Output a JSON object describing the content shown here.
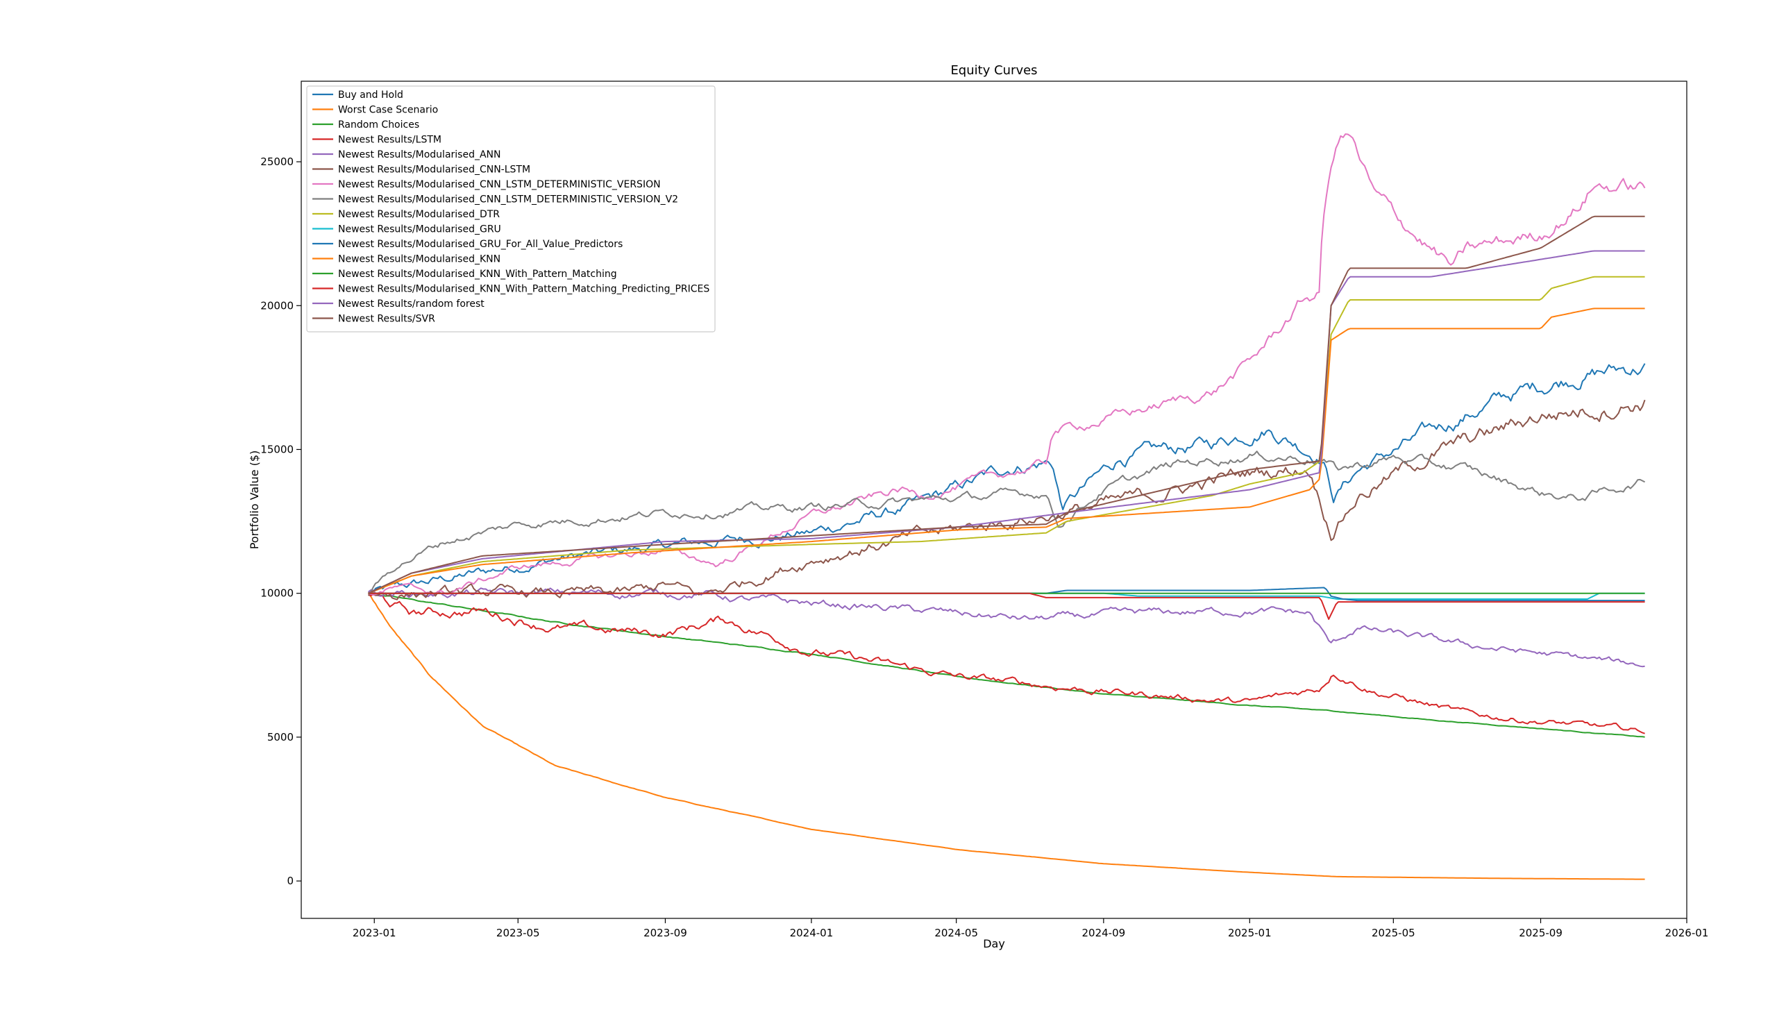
{
  "chart_data": {
    "type": "line",
    "title": "Equity Curves",
    "xlabel": "Day",
    "ylabel": "Portfolio Value ($)",
    "x_start": "2022-12-27",
    "x_end": "2025-11-27",
    "xlim": [
      "2022-11-01",
      "2026-01-01"
    ],
    "ylim": [
      -1300,
      27800
    ],
    "x_ticks": [
      "2023-01",
      "2023-05",
      "2023-09",
      "2024-01",
      "2024-05",
      "2024-09",
      "2025-01",
      "2025-05",
      "2025-09",
      "2026-01"
    ],
    "y_ticks": [
      0,
      5000,
      10000,
      15000,
      20000,
      25000
    ],
    "grid": false,
    "legend_position": "top-left",
    "series": [
      {
        "name": "Buy and Hold",
        "color": "#1f77b4",
        "noise": 0.018,
        "points": [
          [
            "2022-12-27",
            10000
          ],
          [
            "2023-06-01",
            11200
          ],
          [
            "2023-09-15",
            11700
          ],
          [
            "2024-01-01",
            12100
          ],
          [
            "2024-04-01",
            13100
          ],
          [
            "2024-06-15",
            14400
          ],
          [
            "2024-07-20",
            14600
          ],
          [
            "2024-07-28",
            13000
          ],
          [
            "2024-09-15",
            14700
          ],
          [
            "2024-12-01",
            15200
          ],
          [
            "2025-01-15",
            15800
          ],
          [
            "2025-02-20",
            15000
          ],
          [
            "2025-03-03",
            14800
          ],
          [
            "2025-03-12",
            13400
          ],
          [
            "2025-04-01",
            14300
          ],
          [
            "2025-06-01",
            15600
          ],
          [
            "2025-08-01",
            16800
          ],
          [
            "2025-10-01",
            17600
          ],
          [
            "2025-11-27",
            17900
          ]
        ]
      },
      {
        "name": "Worst Case Scenario",
        "color": "#ff7f0e",
        "noise": 0.004,
        "points": [
          [
            "2022-12-27",
            10000
          ],
          [
            "2023-01-15",
            8800
          ],
          [
            "2023-02-15",
            7200
          ],
          [
            "2023-04-01",
            5400
          ],
          [
            "2023-06-01",
            4000
          ],
          [
            "2023-09-01",
            2900
          ],
          [
            "2024-01-01",
            1800
          ],
          [
            "2024-05-01",
            1100
          ],
          [
            "2024-09-01",
            600
          ],
          [
            "2025-01-01",
            300
          ],
          [
            "2025-03-15",
            150
          ],
          [
            "2025-08-01",
            90
          ],
          [
            "2025-11-27",
            60
          ]
        ]
      },
      {
        "name": "Random Choices",
        "color": "#2ca02c",
        "noise": 0.0025,
        "points": [
          [
            "2022-12-27",
            10000
          ],
          [
            "2023-03-01",
            9600
          ],
          [
            "2023-06-01",
            9000
          ],
          [
            "2023-09-01",
            8500
          ],
          [
            "2024-01-01",
            7900
          ],
          [
            "2024-05-01",
            7100
          ],
          [
            "2024-09-01",
            6500
          ],
          [
            "2025-01-01",
            6100
          ],
          [
            "2025-03-15",
            5900
          ],
          [
            "2025-06-01",
            5600
          ],
          [
            "2025-09-01",
            5300
          ],
          [
            "2025-11-27",
            5000
          ]
        ]
      },
      {
        "name": "Newest Results/LSTM",
        "color": "#d62728",
        "noise": 0.02,
        "points": [
          [
            "2022-12-27",
            10000
          ],
          [
            "2023-02-01",
            9300
          ],
          [
            "2023-04-01",
            9400
          ],
          [
            "2023-06-01",
            8800
          ],
          [
            "2023-09-01",
            8600
          ],
          [
            "2023-10-20",
            9100
          ],
          [
            "2024-01-01",
            8000
          ],
          [
            "2024-05-01",
            7100
          ],
          [
            "2024-09-01",
            6600
          ],
          [
            "2025-01-01",
            6200
          ],
          [
            "2025-02-28",
            6700
          ],
          [
            "2025-03-12",
            7300
          ],
          [
            "2025-04-15",
            6600
          ],
          [
            "2025-07-01",
            5800
          ],
          [
            "2025-11-27",
            5200
          ]
        ]
      },
      {
        "name": "Newest Results/Modularised_ANN",
        "color": "#9467bd",
        "noise": 0.015,
        "points": [
          [
            "2022-12-27",
            10000
          ],
          [
            "2023-04-01",
            10000
          ],
          [
            "2023-10-01",
            10000
          ],
          [
            "2023-11-01",
            9800
          ],
          [
            "2024-03-01",
            9500
          ],
          [
            "2024-07-01",
            9100
          ],
          [
            "2024-10-01",
            9300
          ],
          [
            "2025-01-01",
            9400
          ],
          [
            "2025-02-20",
            9300
          ],
          [
            "2025-03-10",
            8200
          ],
          [
            "2025-04-01",
            8800
          ],
          [
            "2025-07-01",
            8200
          ],
          [
            "2025-11-27",
            7500
          ]
        ]
      },
      {
        "name": "Newest Results/Modularised_CNN-LSTM",
        "color": "#8c564b",
        "noise": 0.02,
        "points": [
          [
            "2022-12-27",
            10000
          ],
          [
            "2023-05-01",
            10000
          ],
          [
            "2023-08-01",
            10000
          ],
          [
            "2023-09-01",
            10300
          ],
          [
            "2023-10-01",
            9900
          ],
          [
            "2024-01-01",
            11200
          ],
          [
            "2024-04-01",
            12000
          ],
          [
            "2024-07-15",
            12700
          ],
          [
            "2024-10-01",
            13300
          ],
          [
            "2025-01-01",
            14200
          ],
          [
            "2025-02-20",
            14400
          ],
          [
            "2025-03-10",
            12200
          ],
          [
            "2025-04-01",
            13400
          ],
          [
            "2025-06-01",
            14800
          ],
          [
            "2025-09-01",
            16200
          ],
          [
            "2025-11-27",
            16700
          ]
        ]
      },
      {
        "name": "Newest Results/Modularised_CNN_LSTM_DETERMINISTIC_VERSION",
        "color": "#e377c2",
        "noise": 0.012,
        "points": [
          [
            "2022-12-27",
            10000
          ],
          [
            "2023-01-20",
            10200
          ],
          [
            "2023-03-01",
            10000
          ],
          [
            "2023-05-01",
            10900
          ],
          [
            "2023-09-01",
            11500
          ],
          [
            "2023-10-15",
            11000
          ],
          [
            "2024-01-01",
            12700
          ],
          [
            "2024-03-15",
            13600
          ],
          [
            "2024-04-01",
            13400
          ],
          [
            "2024-07-15",
            14500
          ],
          [
            "2024-07-20",
            15600
          ],
          [
            "2024-12-01",
            17000
          ],
          [
            "2025-01-01",
            18000
          ],
          [
            "2025-02-15",
            20200
          ],
          [
            "2025-02-28",
            20400
          ],
          [
            "2025-03-03",
            23000
          ],
          [
            "2025-03-15",
            25800
          ],
          [
            "2025-03-25",
            26000
          ],
          [
            "2025-04-15",
            23800
          ],
          [
            "2025-06-01",
            22000
          ],
          [
            "2025-06-20",
            21300
          ],
          [
            "2025-07-01",
            21900
          ],
          [
            "2025-09-01",
            22500
          ],
          [
            "2025-10-01",
            23400
          ],
          [
            "2025-10-15",
            24200
          ],
          [
            "2025-11-27",
            24100
          ]
        ]
      },
      {
        "name": "Newest Results/Modularised_CNN_LSTM_DETERMINISTIC_VERSION_V2",
        "color": "#7f7f7f",
        "noise": 0.012,
        "points": [
          [
            "2022-12-27",
            10000
          ],
          [
            "2023-01-20",
            11000
          ],
          [
            "2023-03-01",
            11800
          ],
          [
            "2023-05-01",
            12400
          ],
          [
            "2023-09-01",
            12800
          ],
          [
            "2024-01-01",
            13000
          ],
          [
            "2024-05-01",
            13300
          ],
          [
            "2024-07-15",
            13500
          ],
          [
            "2024-07-25",
            12400
          ],
          [
            "2024-09-01",
            13600
          ],
          [
            "2024-11-01",
            14500
          ],
          [
            "2025-01-01",
            14800
          ],
          [
            "2025-03-01",
            14700
          ],
          [
            "2025-03-15",
            14300
          ],
          [
            "2025-05-01",
            14700
          ],
          [
            "2025-07-01",
            14300
          ],
          [
            "2025-09-01",
            13500
          ],
          [
            "2025-10-01",
            13300
          ],
          [
            "2025-11-27",
            13900
          ]
        ]
      },
      {
        "name": "Newest Results/Modularised_DTR",
        "color": "#bcbd22",
        "noise": 0,
        "points": [
          [
            "2022-12-27",
            10000
          ],
          [
            "2023-02-01",
            10600
          ],
          [
            "2023-04-01",
            11100
          ],
          [
            "2023-08-01",
            11500
          ],
          [
            "2024-01-01",
            11700
          ],
          [
            "2024-04-01",
            11800
          ],
          [
            "2024-07-15",
            12100
          ],
          [
            "2024-08-01",
            12500
          ],
          [
            "2024-12-01",
            13400
          ],
          [
            "2025-01-01",
            13800
          ],
          [
            "2025-02-15",
            14200
          ],
          [
            "2025-03-01",
            14600
          ],
          [
            "2025-03-10",
            19000
          ],
          [
            "2025-03-25",
            20200
          ],
          [
            "2025-09-01",
            20200
          ],
          [
            "2025-09-10",
            20600
          ],
          [
            "2025-10-15",
            21000
          ],
          [
            "2025-11-27",
            21000
          ]
        ]
      },
      {
        "name": "Newest Results/Modularised_GRU",
        "color": "#17becf",
        "noise": 0,
        "points": [
          [
            "2022-12-27",
            10000
          ],
          [
            "2024-04-01",
            10000
          ],
          [
            "2024-09-01",
            10000
          ],
          [
            "2024-10-01",
            9900
          ],
          [
            "2025-01-01",
            9900
          ],
          [
            "2025-03-01",
            9900
          ],
          [
            "2025-03-15",
            9800
          ],
          [
            "2025-10-10",
            9800
          ],
          [
            "2025-10-20",
            10000
          ],
          [
            "2025-11-27",
            10000
          ]
        ]
      },
      {
        "name": "Newest Results/Modularised_GRU_For_All_Value_Predictors",
        "color": "#1f77b4",
        "noise": 0,
        "points": [
          [
            "2022-12-27",
            10000
          ],
          [
            "2024-07-15",
            10000
          ],
          [
            "2024-08-01",
            10100
          ],
          [
            "2025-01-01",
            10100
          ],
          [
            "2025-03-05",
            10200
          ],
          [
            "2025-03-10",
            9900
          ],
          [
            "2025-03-20",
            9800
          ],
          [
            "2025-04-01",
            9750
          ],
          [
            "2025-11-27",
            9750
          ]
        ]
      },
      {
        "name": "Newest Results/Modularised_KNN",
        "color": "#ff7f0e",
        "noise": 0,
        "points": [
          [
            "2022-12-27",
            10000
          ],
          [
            "2023-02-01",
            10600
          ],
          [
            "2023-04-01",
            11000
          ],
          [
            "2023-08-01",
            11400
          ],
          [
            "2024-01-01",
            11800
          ],
          [
            "2024-05-01",
            12200
          ],
          [
            "2024-07-15",
            12300
          ],
          [
            "2024-08-01",
            12600
          ],
          [
            "2025-01-01",
            13000
          ],
          [
            "2025-02-20",
            13600
          ],
          [
            "2025-03-01",
            14000
          ],
          [
            "2025-03-10",
            18800
          ],
          [
            "2025-03-25",
            19200
          ],
          [
            "2025-09-01",
            19200
          ],
          [
            "2025-09-10",
            19600
          ],
          [
            "2025-10-15",
            19900
          ],
          [
            "2025-11-27",
            19900
          ]
        ]
      },
      {
        "name": "Newest Results/Modularised_KNN_With_Pattern_Matching",
        "color": "#2ca02c",
        "noise": 0,
        "points": [
          [
            "2022-12-27",
            10000
          ],
          [
            "2024-09-01",
            10000
          ],
          [
            "2025-11-27",
            10000
          ]
        ]
      },
      {
        "name": "Newest Results/Modularised_KNN_With_Pattern_Matching_Predicting_PRICES",
        "color": "#d62728",
        "noise": 0,
        "points": [
          [
            "2022-12-27",
            10000
          ],
          [
            "2024-07-01",
            10000
          ],
          [
            "2024-07-15",
            9850
          ],
          [
            "2025-03-01",
            9850
          ],
          [
            "2025-03-08",
            9100
          ],
          [
            "2025-03-15",
            9700
          ],
          [
            "2025-11-27",
            9700
          ]
        ]
      },
      {
        "name": "Newest Results/random forest",
        "color": "#9467bd",
        "noise": 0,
        "points": [
          [
            "2022-12-27",
            10000
          ],
          [
            "2023-02-01",
            10700
          ],
          [
            "2023-04-01",
            11200
          ],
          [
            "2023-09-01",
            11800
          ],
          [
            "2024-01-01",
            11900
          ],
          [
            "2024-05-01",
            12300
          ],
          [
            "2024-08-01",
            12800
          ],
          [
            "2025-01-01",
            13600
          ],
          [
            "2025-03-01",
            14200
          ],
          [
            "2025-03-10",
            20000
          ],
          [
            "2025-03-25",
            21000
          ],
          [
            "2025-06-01",
            21000
          ],
          [
            "2025-08-01",
            21400
          ],
          [
            "2025-10-15",
            21900
          ],
          [
            "2025-11-27",
            21900
          ]
        ]
      },
      {
        "name": "Newest Results/SVR",
        "color": "#8c564b",
        "noise": 0,
        "points": [
          [
            "2022-12-27",
            10000
          ],
          [
            "2023-02-01",
            10700
          ],
          [
            "2023-04-01",
            11300
          ],
          [
            "2023-09-01",
            11700
          ],
          [
            "2024-01-01",
            12000
          ],
          [
            "2024-05-01",
            12300
          ],
          [
            "2024-07-15",
            12400
          ],
          [
            "2024-08-01",
            12800
          ],
          [
            "2025-01-01",
            14300
          ],
          [
            "2025-03-01",
            14600
          ],
          [
            "2025-03-10",
            20000
          ],
          [
            "2025-03-25",
            21300
          ],
          [
            "2025-07-01",
            21300
          ],
          [
            "2025-09-01",
            22000
          ],
          [
            "2025-10-15",
            23100
          ],
          [
            "2025-11-27",
            23100
          ]
        ]
      }
    ]
  }
}
